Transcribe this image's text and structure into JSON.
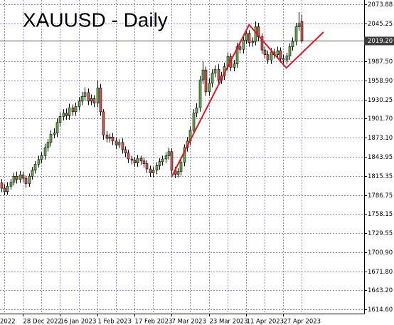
{
  "chart_data": {
    "type": "candlestick",
    "title": "XAUUSD - Daily",
    "ylim": [
      1608.2,
      2080.3
    ],
    "yticks": [
      2073.88,
      2045.25,
      {
        "value": 1987.5,
        "label": "1987.50"
      },
      {
        "value": 1958.9,
        "label": "1958.90"
      },
      1930.25,
      {
        "value": 1901.7,
        "label": "1901.70"
      },
      {
        "value": 1873.1,
        "label": "1873.10"
      },
      1843.95,
      1815.35,
      1786.75,
      1758.15,
      1729.55,
      {
        "value": 1700.9,
        "label": "1700.90"
      },
      {
        "value": 1671.8,
        "label": "1671.80"
      },
      {
        "value": 1643.2,
        "label": "1643.20"
      },
      {
        "value": 1614.6,
        "label": "1614.60"
      }
    ],
    "grid": true,
    "x_axis_clipped_label": "2022",
    "categories": [
      null,
      null,
      null,
      null,
      null,
      null,
      null,
      "28 Dec 2022",
      null,
      null,
      null,
      null,
      null,
      null,
      null,
      null,
      null,
      null,
      null,
      "16 Jan 2023",
      null,
      null,
      null,
      null,
      null,
      null,
      null,
      null,
      null,
      null,
      null,
      "1 Feb 2023",
      null,
      null,
      null,
      null,
      null,
      null,
      null,
      null,
      null,
      null,
      null,
      "17 Feb 2023",
      null,
      null,
      null,
      null,
      null,
      null,
      null,
      null,
      null,
      null,
      null,
      "7 Mar 2023",
      null,
      null,
      null,
      null,
      null,
      null,
      null,
      null,
      null,
      null,
      null,
      "23 Mar 2023",
      null,
      null,
      null,
      null,
      null,
      null,
      null,
      null,
      null,
      null,
      null,
      "11 Apr 2023",
      null,
      null,
      null,
      null,
      null,
      null,
      null,
      null,
      null,
      null,
      null,
      "27 Apr 2023",
      null,
      null,
      null,
      null,
      null,
      null
    ],
    "up_color": "#6ab04c",
    "down_color": "#d9534f",
    "open": [
      1805,
      1797,
      1792,
      1800,
      1806,
      1815,
      1810,
      1817,
      1812,
      1804,
      1815,
      1824,
      1833,
      1840,
      1846,
      1858,
      1866,
      1878,
      1880,
      1896,
      1905,
      1910,
      1906,
      1918,
      1912,
      1920,
      1928,
      1935,
      1941,
      1928,
      1932,
      1925,
      1948,
      1912,
      1877,
      1872,
      1874,
      1868,
      1862,
      1866,
      1855,
      1850,
      1841,
      1839,
      1835,
      1842,
      1838,
      1834,
      1826,
      1820,
      1824,
      1831,
      1837,
      1841,
      1846,
      1852,
      1824,
      1818,
      1822,
      1836,
      1858,
      1868,
      1884,
      1910,
      1918,
      1960,
      1975,
      1942,
      1955,
      1970,
      1976,
      1960,
      1966,
      1980,
      1995,
      1979,
      1984,
      2010,
      2006,
      2020,
      2030,
      2016,
      2018,
      2040,
      2025,
      2005,
      1998,
      1990,
      2002,
      1998,
      2004,
      1992,
      1990,
      1996,
      2010,
      2018,
      2040,
      2048
    ],
    "high": [
      1811,
      1803,
      1806,
      1811,
      1820,
      1822,
      1823,
      1822,
      1816,
      1819,
      1829,
      1838,
      1846,
      1851,
      1864,
      1871,
      1884,
      1887,
      1902,
      1911,
      1916,
      1917,
      1924,
      1923,
      1926,
      1934,
      1942,
      1949,
      1947,
      1938,
      1937,
      1959,
      1954,
      1916,
      1883,
      1879,
      1880,
      1873,
      1871,
      1872,
      1860,
      1855,
      1846,
      1844,
      1847,
      1846,
      1843,
      1839,
      1831,
      1829,
      1836,
      1842,
      1846,
      1851,
      1858,
      1857,
      1829,
      1827,
      1841,
      1863,
      1874,
      1890,
      1916,
      1925,
      1966,
      1988,
      1980,
      1962,
      1976,
      1982,
      1984,
      1972,
      1986,
      2001,
      2000,
      1990,
      2016,
      2014,
      2026,
      2036,
      2035,
      2024,
      2048,
      2046,
      2030,
      2010,
      2004,
      2008,
      2007,
      2010,
      2009,
      1998,
      2001,
      2015,
      2024,
      2046,
      2062,
      2058
    ],
    "low": [
      1791,
      1786,
      1787,
      1795,
      1801,
      1804,
      1805,
      1806,
      1798,
      1799,
      1810,
      1819,
      1828,
      1835,
      1840,
      1852,
      1860,
      1872,
      1874,
      1890,
      1899,
      1900,
      1900,
      1906,
      1906,
      1914,
      1922,
      1929,
      1922,
      1922,
      1919,
      1919,
      1906,
      1870,
      1866,
      1866,
      1862,
      1856,
      1857,
      1849,
      1844,
      1835,
      1833,
      1829,
      1829,
      1832,
      1828,
      1820,
      1814,
      1814,
      1818,
      1825,
      1831,
      1835,
      1840,
      1818,
      1812,
      1813,
      1816,
      1830,
      1852,
      1862,
      1878,
      1904,
      1912,
      1954,
      1936,
      1936,
      1949,
      1964,
      1954,
      1954,
      1960,
      1974,
      1973,
      1973,
      1978,
      2000,
      2000,
      2014,
      2010,
      2010,
      2012,
      2019,
      1999,
      1992,
      1984,
      1984,
      1992,
      1992,
      1986,
      1984,
      1984,
      1990,
      2004,
      2012,
      2034,
      2016
    ],
    "close": [
      1797,
      1792,
      1800,
      1806,
      1815,
      1810,
      1817,
      1812,
      1804,
      1815,
      1824,
      1833,
      1840,
      1846,
      1858,
      1866,
      1878,
      1880,
      1896,
      1905,
      1910,
      1906,
      1918,
      1912,
      1920,
      1928,
      1935,
      1941,
      1928,
      1932,
      1925,
      1948,
      1912,
      1877,
      1872,
      1874,
      1868,
      1862,
      1866,
      1855,
      1850,
      1841,
      1839,
      1835,
      1842,
      1838,
      1834,
      1826,
      1820,
      1824,
      1831,
      1837,
      1841,
      1846,
      1852,
      1824,
      1818,
      1822,
      1836,
      1858,
      1868,
      1884,
      1910,
      1918,
      1960,
      1975,
      1942,
      1955,
      1970,
      1976,
      1960,
      1966,
      1980,
      1995,
      1979,
      1984,
      2010,
      2006,
      2020,
      2030,
      2016,
      2018,
      2040,
      2025,
      2005,
      1998,
      1990,
      2002,
      1998,
      2004,
      1992,
      1990,
      1996,
      2010,
      2018,
      2040,
      2045,
      2019.2
    ],
    "last_price": {
      "value": 2019.2,
      "label": "2019.20"
    },
    "trend_line": {
      "color": "#e8141c",
      "x": [
        55,
        80,
        92,
        104
      ],
      "y": [
        1814,
        2043,
        1978,
        2032
      ]
    }
  }
}
